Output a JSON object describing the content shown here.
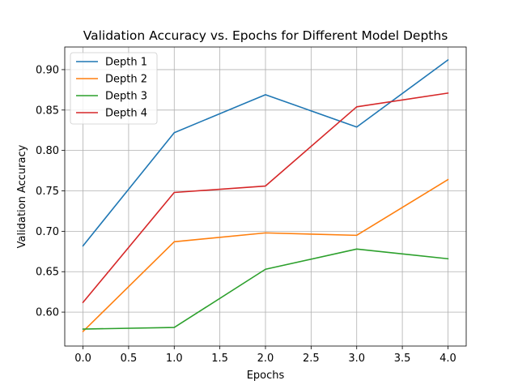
{
  "chart_data": {
    "type": "line",
    "title": "Validation Accuracy vs. Epochs for Different Model Depths",
    "xlabel": "Epochs",
    "ylabel": "Validation Accuracy",
    "x": [
      0,
      1,
      2,
      3,
      4
    ],
    "xlim": [
      -0.2,
      4.2
    ],
    "ylim": [
      0.558,
      0.928
    ],
    "xticks": [
      0.0,
      0.5,
      1.0,
      1.5,
      2.0,
      2.5,
      3.0,
      3.5,
      4.0
    ],
    "xtick_labels": [
      "0.0",
      "0.5",
      "1.0",
      "1.5",
      "2.0",
      "2.5",
      "3.0",
      "3.5",
      "4.0"
    ],
    "yticks": [
      0.6,
      0.65,
      0.7,
      0.75,
      0.8,
      0.85,
      0.9
    ],
    "ytick_labels": [
      "0.60",
      "0.65",
      "0.70",
      "0.75",
      "0.80",
      "0.85",
      "0.90"
    ],
    "grid": true,
    "legend_position": "top-left",
    "series": [
      {
        "name": "Depth 1",
        "color": "#1f77b4",
        "values": [
          0.682,
          0.822,
          0.869,
          0.829,
          0.912
        ]
      },
      {
        "name": "Depth 2",
        "color": "#ff7f0e",
        "values": [
          0.576,
          0.687,
          0.698,
          0.695,
          0.764
        ]
      },
      {
        "name": "Depth 3",
        "color": "#2ca02c",
        "values": [
          0.579,
          0.581,
          0.653,
          0.678,
          0.666
        ]
      },
      {
        "name": "Depth 4",
        "color": "#d62728",
        "values": [
          0.612,
          0.748,
          0.756,
          0.854,
          0.871
        ]
      }
    ]
  }
}
